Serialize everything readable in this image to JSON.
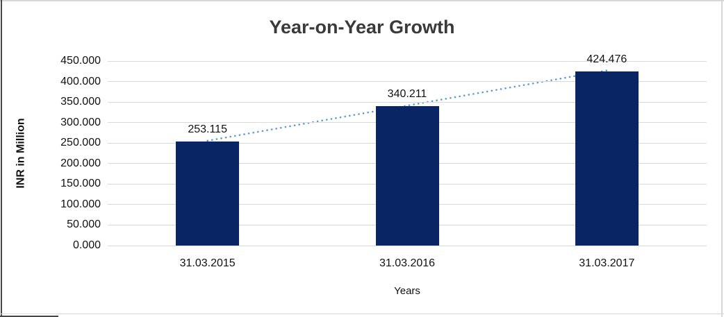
{
  "chart_data": {
    "type": "bar",
    "title": "Year-on-Year Growth",
    "xlabel": "Years",
    "ylabel": "INR in Million",
    "categories": [
      "31.03.2015",
      "31.03.2016",
      "31.03.2017"
    ],
    "values": [
      253.115,
      340.211,
      424.476
    ],
    "data_labels": [
      "253.115",
      "340.211",
      "424.476"
    ],
    "ylim": [
      0,
      450
    ],
    "ytick_values": [
      0,
      50,
      100,
      150,
      200,
      250,
      300,
      350,
      400,
      450
    ],
    "ytick_labels": [
      "0.000",
      "50.000",
      "100.000",
      "150.000",
      "200.000",
      "250.000",
      "300.000",
      "350.000",
      "400.000",
      "450.000"
    ],
    "grid": true,
    "legend": "none",
    "trendline": {
      "type": "linear",
      "style": "dotted"
    },
    "colors": {
      "bar": "#0a2563",
      "trendline": "#5b9bd5",
      "gridline": "#d9d9d9",
      "title": "#3a3a3a",
      "text": "#111111"
    }
  }
}
